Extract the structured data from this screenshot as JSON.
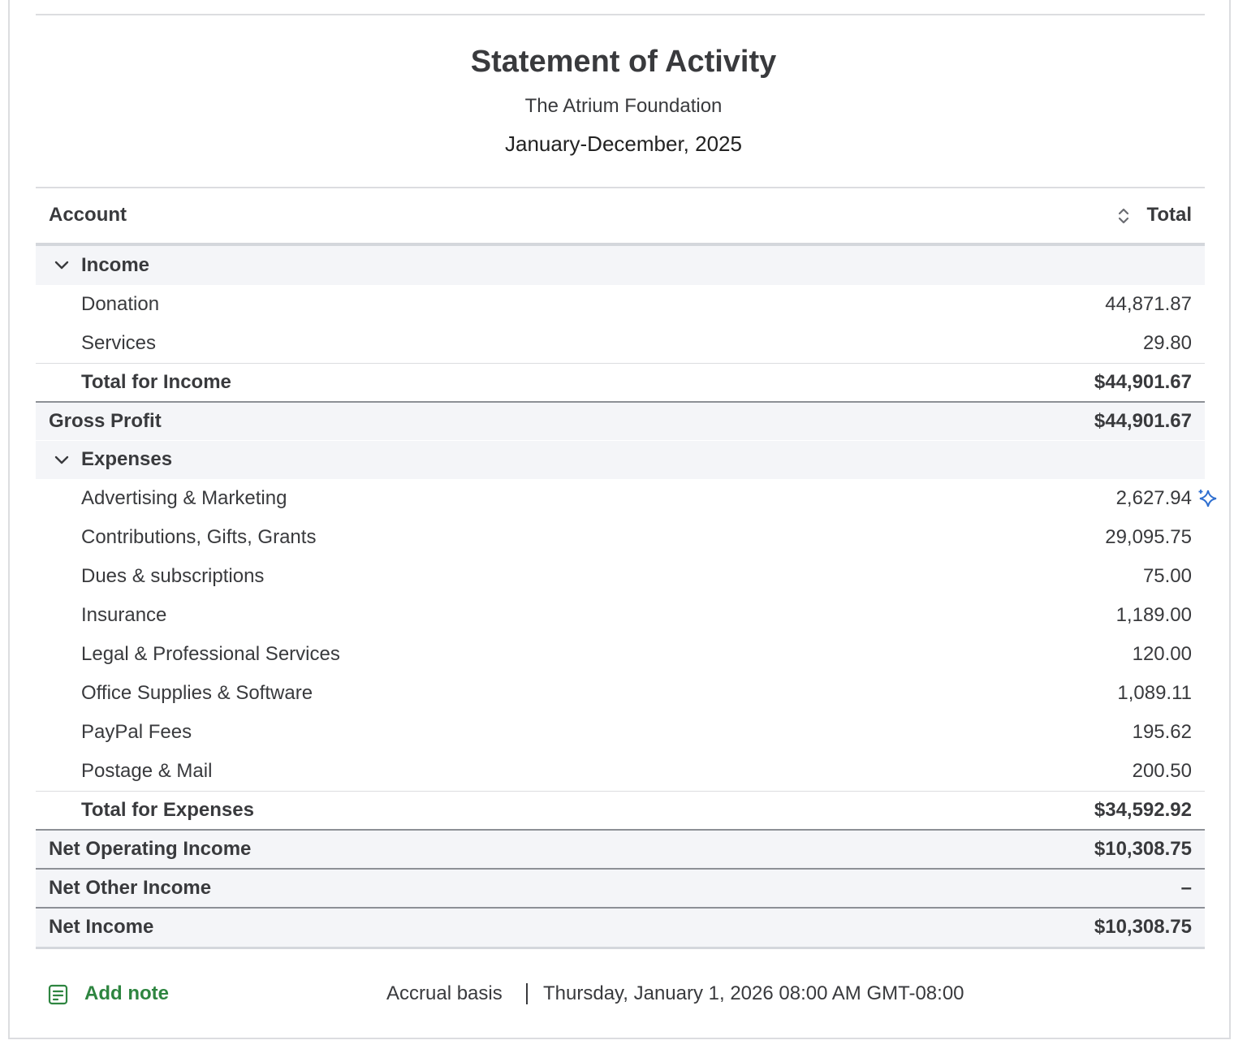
{
  "header": {
    "title": "Statement of Activity",
    "organization": "The Atrium Foundation",
    "period": "January-December, 2025"
  },
  "table": {
    "columns": [
      "Account",
      "Total"
    ],
    "income": {
      "label": "Income",
      "rows": [
        {
          "label": "Donation",
          "value": "44,871.87"
        },
        {
          "label": "Services",
          "value": "29.80"
        }
      ],
      "total": {
        "label": "Total for Income",
        "value": "$44,901.67"
      }
    },
    "gross_profit": {
      "label": "Gross Profit",
      "value": "$44,901.67"
    },
    "expenses": {
      "label": "Expenses",
      "rows": [
        {
          "label": "Advertising & Marketing",
          "value": "2,627.94"
        },
        {
          "label": "Contributions, Gifts, Grants",
          "value": "29,095.75"
        },
        {
          "label": "Dues & subscriptions",
          "value": "75.00"
        },
        {
          "label": "Insurance",
          "value": "1,189.00"
        },
        {
          "label": "Legal & Professional Services",
          "value": "120.00"
        },
        {
          "label": "Office Supplies & Software",
          "value": "1,089.11"
        },
        {
          "label": "PayPal Fees",
          "value": "195.62"
        },
        {
          "label": "Postage & Mail",
          "value": "200.50"
        }
      ],
      "total": {
        "label": "Total for Expenses",
        "value": "$34,592.92"
      }
    },
    "net_operating_income": {
      "label": "Net Operating Income",
      "value": "$10,308.75"
    },
    "net_other_income": {
      "label": "Net Other Income",
      "value": "–"
    },
    "net_income": {
      "label": "Net Income",
      "value": "$10,308.75"
    }
  },
  "footer": {
    "action": "Add note",
    "basis": "Accrual basis",
    "timestamp": "Thursday, January 1, 2026 08:00 AM GMT-08:00"
  }
}
